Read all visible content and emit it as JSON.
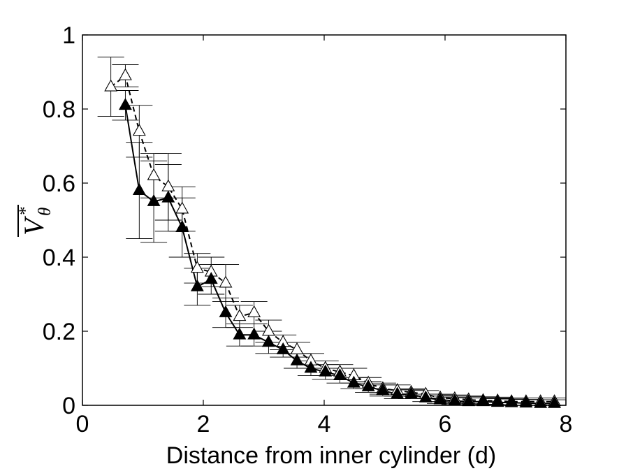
{
  "chart_data": {
    "type": "scatter",
    "title": "",
    "xlabel": "Distance from inner cylinder (d)",
    "ylabel": {
      "base": "V",
      "superscript": "*",
      "subscript": "θ"
    },
    "xlim": [
      0,
      8
    ],
    "ylim": [
      0,
      1
    ],
    "xticks": [
      "0",
      "2",
      "4",
      "6",
      "8"
    ],
    "yticks": [
      "0",
      "0.2",
      "0.4",
      "0.6",
      "0.8",
      "1"
    ],
    "grid": false,
    "legend": "none",
    "series": [
      {
        "marker": "filled-triangle",
        "line": "solid",
        "color": "#000000",
        "x": [
          0.71,
          0.94,
          1.18,
          1.42,
          1.65,
          1.9,
          2.13,
          2.37,
          2.6,
          2.84,
          3.08,
          3.32,
          3.55,
          3.78,
          4.02,
          4.26,
          4.49,
          4.73,
          4.97,
          5.21,
          5.44,
          5.68,
          5.92,
          6.16,
          6.39,
          6.63,
          6.87,
          7.1,
          7.34,
          7.58,
          7.81
        ],
        "y": [
          0.81,
          0.58,
          0.55,
          0.56,
          0.48,
          0.32,
          0.34,
          0.25,
          0.19,
          0.19,
          0.17,
          0.15,
          0.12,
          0.1,
          0.09,
          0.08,
          0.06,
          0.05,
          0.04,
          0.03,
          0.03,
          0.02,
          0.015,
          0.012,
          0.01,
          0.01,
          0.008,
          0.007,
          0.006,
          0.005,
          0.005
        ],
        "err": [
          0.04,
          0.13,
          0.11,
          0.09,
          0.08,
          0.05,
          0.04,
          0.04,
          0.03,
          0.03,
          0.03,
          0.02,
          0.02,
          0.02,
          0.02,
          0.02,
          0.015,
          0.015,
          0.015,
          0.012,
          0.012,
          0.01,
          0.01,
          0.01,
          0.01,
          0.01,
          0.01,
          0.01,
          0.01,
          0.01,
          0.01
        ],
        "xerr": 0.22
      },
      {
        "marker": "open-triangle",
        "line": "dashed",
        "color": "#000000",
        "x": [
          0.47,
          0.71,
          0.94,
          1.18,
          1.42,
          1.65,
          1.9,
          2.13,
          2.37,
          2.6,
          2.84,
          3.08,
          3.32,
          3.55,
          3.78,
          4.02,
          4.26,
          4.49,
          4.73,
          4.97,
          5.21,
          5.44,
          5.68,
          5.92,
          6.16,
          6.39,
          6.63,
          6.87,
          7.1,
          7.34,
          7.58,
          7.81
        ],
        "y": [
          0.86,
          0.89,
          0.74,
          0.62,
          0.59,
          0.53,
          0.37,
          0.36,
          0.33,
          0.24,
          0.25,
          0.2,
          0.17,
          0.15,
          0.12,
          0.1,
          0.09,
          0.08,
          0.06,
          0.045,
          0.04,
          0.035,
          0.03,
          0.02,
          0.018,
          0.015,
          0.013,
          0.012,
          0.01,
          0.01,
          0.01,
          0.01
        ],
        "err": [
          0.08,
          0.03,
          0.07,
          0.06,
          0.09,
          0.06,
          0.04,
          0.04,
          0.05,
          0.03,
          0.03,
          0.03,
          0.02,
          0.02,
          0.02,
          0.02,
          0.02,
          0.02,
          0.015,
          0.015,
          0.015,
          0.01,
          0.01,
          0.01,
          0.01,
          0.01,
          0.01,
          0.01,
          0.01,
          0.01,
          0.01,
          0.01
        ],
        "xerr": 0.22
      }
    ]
  }
}
